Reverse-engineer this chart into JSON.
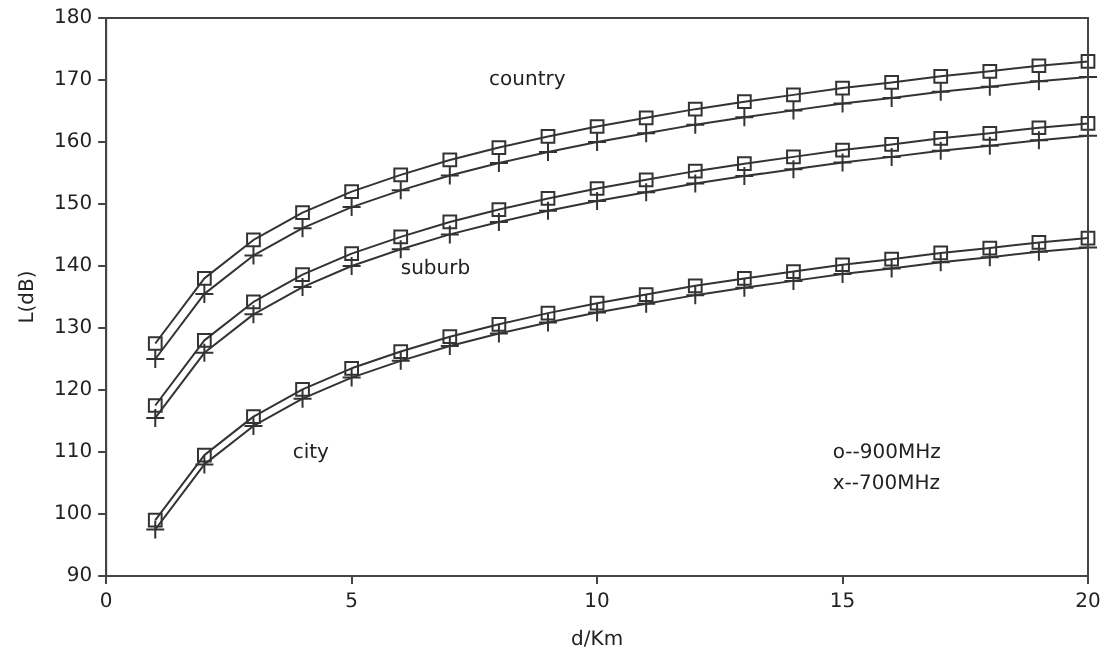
{
  "chart_data": {
    "type": "line",
    "xlabel": "d/Km",
    "ylabel": "L(dB)",
    "x": [
      1,
      2,
      3,
      4,
      5,
      6,
      7,
      8,
      9,
      10,
      11,
      12,
      13,
      14,
      15,
      16,
      17,
      18,
      19,
      20
    ],
    "xlim": [
      0,
      20
    ],
    "xticks": [
      0,
      5,
      10,
      15,
      20
    ],
    "ylim": [
      90,
      180
    ],
    "yticks": [
      90,
      100,
      110,
      120,
      130,
      140,
      150,
      160,
      170,
      180
    ],
    "grid": false,
    "legend": false,
    "line_style": "solid",
    "series": [
      {
        "color": "#333333",
        "marker": "square",
        "values": [
          127.5,
          138,
          144.2,
          148.6,
          152,
          154.7,
          157.1,
          159.1,
          160.9,
          162.5,
          163.9,
          165.3,
          166.5,
          167.6,
          168.7,
          169.6,
          170.6,
          171.4,
          172.3,
          173
        ]
      },
      {
        "color": "#333333",
        "marker": "cross",
        "values": [
          125,
          135.5,
          141.7,
          146.1,
          149.5,
          152.2,
          154.6,
          156.6,
          158.4,
          160,
          161.4,
          162.8,
          164,
          165.1,
          166.2,
          167.1,
          168.1,
          168.9,
          169.8,
          170.5
        ]
      },
      {
        "color": "#333333",
        "marker": "square",
        "values": [
          117.5,
          128,
          134.2,
          138.6,
          142,
          144.7,
          147.1,
          149.1,
          150.9,
          152.5,
          153.9,
          155.3,
          156.5,
          157.6,
          158.7,
          159.6,
          160.6,
          161.4,
          162.3,
          163
        ]
      },
      {
        "color": "#333333",
        "marker": "cross",
        "values": [
          115.5,
          126,
          132.2,
          136.6,
          140,
          142.7,
          145.1,
          147.1,
          148.9,
          150.5,
          151.9,
          153.3,
          154.5,
          155.6,
          156.7,
          157.6,
          158.6,
          159.4,
          160.3,
          161
        ]
      },
      {
        "color": "#333333",
        "marker": "square",
        "values": [
          99,
          109.5,
          115.7,
          120.1,
          123.5,
          126.2,
          128.6,
          130.6,
          132.4,
          134,
          135.4,
          136.8,
          138,
          139.1,
          140.2,
          141.1,
          142.1,
          142.9,
          143.8,
          144.5
        ]
      },
      {
        "color": "#333333",
        "marker": "cross",
        "values": [
          97.5,
          108,
          114.2,
          118.6,
          122,
          124.7,
          127.1,
          129.1,
          130.9,
          132.5,
          133.9,
          135.3,
          136.5,
          137.6,
          138.7,
          139.6,
          140.6,
          141.4,
          142.3,
          143
        ]
      }
    ],
    "annotations": [
      "country",
      "suburb",
      "city",
      "o--900MHz",
      "x--700MHz"
    ]
  }
}
